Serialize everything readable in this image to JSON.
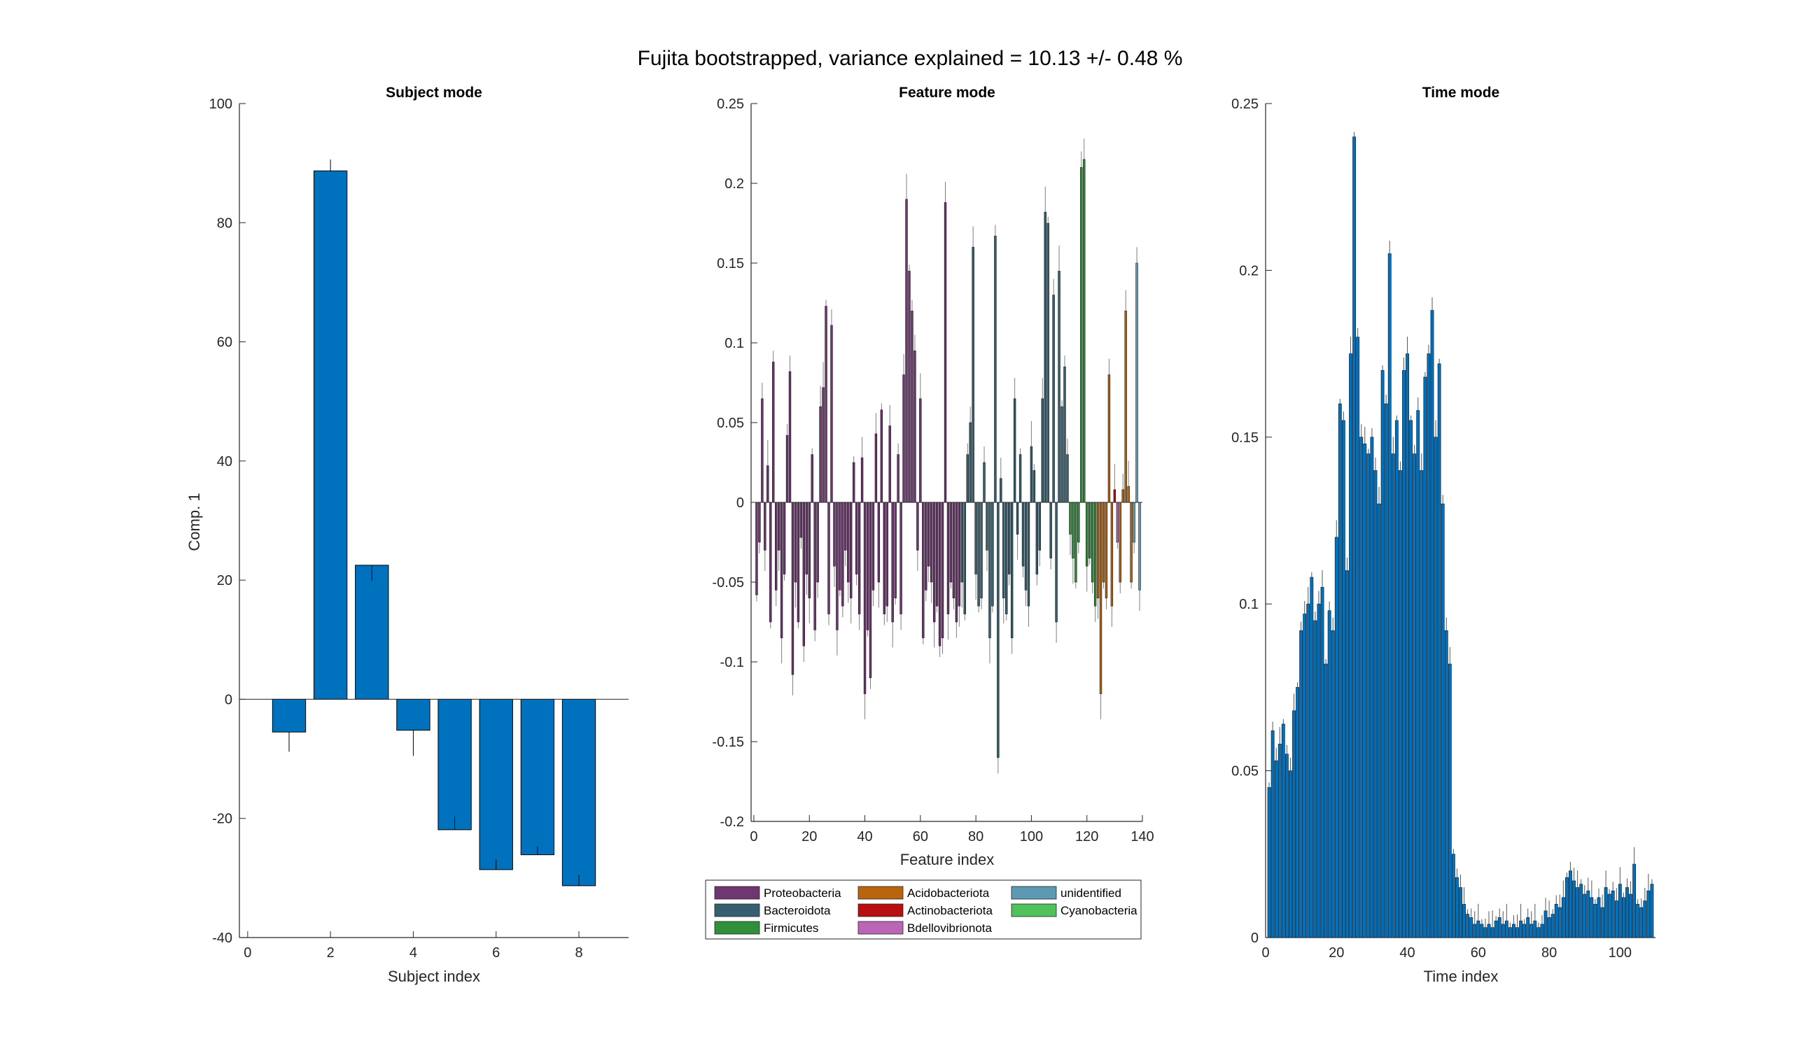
{
  "figure": {
    "title": "Fujita bootstrapped, variance explained = 10.13 +/- 0.48 %"
  },
  "chart_data": [
    {
      "type": "bar",
      "title": "Subject mode",
      "xlabel": "Subject index",
      "ylabel": "Comp. 1",
      "xlim": [
        -0.2,
        9.2
      ],
      "ylim": [
        -40,
        100
      ],
      "xticks": [
        0,
        2,
        4,
        6,
        8
      ],
      "yticks": [
        -40,
        -20,
        0,
        20,
        40,
        60,
        80,
        100
      ],
      "bar_color": "#0072BD",
      "x": [
        1,
        2,
        3,
        4,
        5,
        6,
        7,
        8
      ],
      "values": [
        -5.5,
        88.7,
        22.5,
        -5.2,
        -21.9,
        -28.6,
        -26.1,
        -31.3
      ],
      "error_tips": [
        -8.8,
        90.6,
        19.9,
        -9.5,
        -19.7,
        -26.9,
        -24.7,
        -29.5
      ]
    },
    {
      "type": "bar",
      "title": "Feature mode",
      "xlabel": "Feature index",
      "ylabel": "",
      "xlim": [
        -1,
        140
      ],
      "ylim": [
        -0.2,
        0.25
      ],
      "xticks": [
        0,
        20,
        40,
        60,
        80,
        100,
        120,
        140
      ],
      "yticks": [
        -0.2,
        -0.15,
        -0.1,
        -0.05,
        0,
        0.05,
        0.1,
        0.15,
        0.2,
        0.25
      ],
      "legend": {
        "position": "below",
        "entries": [
          {
            "name": "Proteobacteria",
            "color": "#6F3671"
          },
          {
            "name": "Bacteroidota",
            "color": "#365F6F"
          },
          {
            "name": "Firmicutes",
            "color": "#2F8F3A"
          },
          {
            "name": "Acidobacteriota",
            "color": "#B8650E"
          },
          {
            "name": "Actinobacteriota",
            "color": "#B80F10"
          },
          {
            "name": "Bdellovibrionota",
            "color": "#BB65B6"
          },
          {
            "name": "unidentified",
            "color": "#5C9AB4"
          },
          {
            "name": "Cyanobacteria",
            "color": "#4FC25C"
          }
        ]
      },
      "groups": [
        {
          "phylum": "Proteobacteria",
          "range": [
            1,
            74
          ]
        },
        {
          "phylum": "Bacteroidota",
          "range": [
            75,
            113
          ]
        },
        {
          "phylum": "Firmicutes",
          "range": [
            114,
            123
          ]
        },
        {
          "phylum": "Acidobacteriota",
          "range": [
            124,
            129
          ]
        },
        {
          "phylum": "Actinobacteriota",
          "range": [
            130,
            130
          ]
        },
        {
          "phylum": "Bdellovibrionota",
          "range": [
            131,
            131
          ]
        },
        {
          "phylum": "Acidobacteriota",
          "range": [
            132,
            136
          ]
        },
        {
          "phylum": "unidentified",
          "range": [
            137,
            139
          ]
        }
      ],
      "values": [
        -0.058,
        -0.025,
        0.065,
        -0.03,
        0.023,
        -0.075,
        0.088,
        -0.055,
        -0.03,
        -0.085,
        -0.045,
        0.042,
        0.082,
        -0.108,
        -0.05,
        -0.075,
        -0.022,
        -0.09,
        -0.045,
        -0.06,
        0.03,
        -0.08,
        -0.05,
        0.06,
        0.072,
        0.123,
        -0.07,
        0.111,
        -0.04,
        -0.08,
        -0.055,
        -0.065,
        -0.03,
        -0.05,
        -0.06,
        0.025,
        -0.045,
        -0.07,
        0.028,
        -0.12,
        -0.08,
        -0.11,
        -0.055,
        0.043,
        -0.05,
        0.058,
        -0.07,
        -0.065,
        0.048,
        -0.075,
        -0.06,
        0.03,
        -0.07,
        0.08,
        0.19,
        0.145,
        0.12,
        0.095,
        -0.03,
        0.065,
        -0.085,
        -0.055,
        -0.04,
        -0.05,
        -0.075,
        -0.065,
        -0.09,
        -0.085,
        0.188,
        -0.07,
        -0.05,
        -0.06,
        -0.075,
        -0.065,
        -0.05,
        -0.07,
        0.03,
        0.05,
        0.16,
        -0.045,
        -0.065,
        -0.06,
        0.025,
        -0.03,
        -0.085,
        -0.065,
        0.167,
        -0.16,
        0.015,
        -0.06,
        -0.07,
        -0.045,
        -0.085,
        0.065,
        -0.02,
        0.03,
        -0.04,
        -0.055,
        -0.065,
        0.035,
        0.02,
        -0.045,
        -0.03,
        0.065,
        0.182,
        0.175,
        -0.035,
        0.13,
        -0.075,
        0.145,
        0.06,
        0.085,
        0.03,
        -0.02,
        -0.035,
        -0.05,
        -0.025,
        0.21,
        0.215,
        -0.04,
        -0.035,
        -0.05,
        -0.065,
        -0.06,
        -0.12,
        -0.05,
        -0.06,
        0.08,
        -0.065,
        0.008,
        -0.025,
        -0.05,
        0.008,
        0.12,
        0.01,
        -0.05,
        -0.025,
        0.15,
        -0.055
      ]
    },
    {
      "type": "bar",
      "title": "Time mode",
      "xlabel": "Time index",
      "ylabel": "",
      "xlim": [
        0,
        110
      ],
      "ylim": [
        0,
        0.25
      ],
      "xticks": [
        0,
        20,
        40,
        60,
        80,
        100
      ],
      "yticks": [
        0,
        0.05,
        0.1,
        0.15,
        0.2,
        0.25
      ],
      "bar_color": "#0072BD",
      "values": [
        0.045,
        0.062,
        0.053,
        0.058,
        0.064,
        0.055,
        0.05,
        0.068,
        0.075,
        0.092,
        0.097,
        0.1,
        0.108,
        0.095,
        0.1,
        0.105,
        0.082,
        0.098,
        0.092,
        0.12,
        0.16,
        0.155,
        0.11,
        0.175,
        0.24,
        0.18,
        0.15,
        0.148,
        0.145,
        0.15,
        0.14,
        0.13,
        0.17,
        0.16,
        0.205,
        0.145,
        0.155,
        0.14,
        0.17,
        0.175,
        0.155,
        0.145,
        0.158,
        0.14,
        0.168,
        0.175,
        0.188,
        0.15,
        0.172,
        0.13,
        0.092,
        0.082,
        0.025,
        0.018,
        0.015,
        0.01,
        0.007,
        0.006,
        0.004,
        0.005,
        0.004,
        0.003,
        0.004,
        0.003,
        0.005,
        0.006,
        0.004,
        0.005,
        0.003,
        0.004,
        0.003,
        0.005,
        0.004,
        0.006,
        0.004,
        0.005,
        0.003,
        0.004,
        0.008,
        0.006,
        0.007,
        0.01,
        0.009,
        0.012,
        0.018,
        0.02,
        0.017,
        0.015,
        0.016,
        0.013,
        0.014,
        0.012,
        0.01,
        0.012,
        0.009,
        0.015,
        0.013,
        0.014,
        0.011,
        0.016,
        0.012,
        0.015,
        0.013,
        0.022,
        0.01,
        0.009,
        0.011,
        0.014,
        0.016
      ]
    }
  ]
}
